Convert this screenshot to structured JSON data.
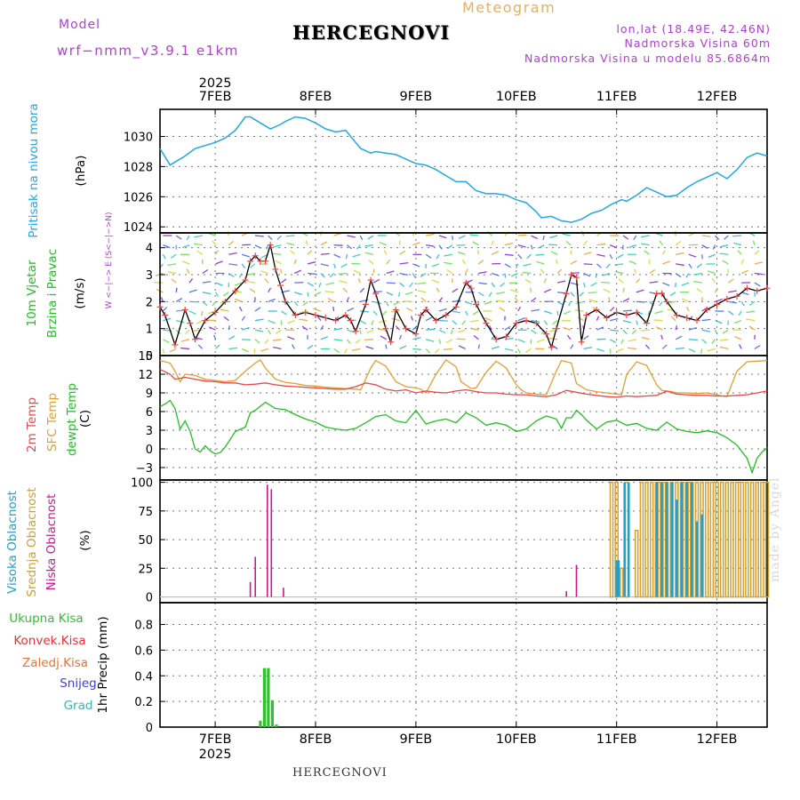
{
  "header": {
    "model_label": "Model",
    "model_version": "wrf−nmm_v3.9.1  e1km",
    "meteogram_label": "Meteogram",
    "station": "HERCEGNOVI",
    "coords": "lon,lat (18.49E, 42.46N)",
    "elevation": "Nadmorska Visina 60m",
    "model_elevation": "Nadmorska Visina u modelu 85.6864m"
  },
  "footer": {
    "station": "HERCEGNOVI",
    "credit": "made by Angel"
  },
  "colors": {
    "pressure": "#20a8e8",
    "wind_label": "#20c020",
    "t2m": "#e84848",
    "sfc_temp": "#e0a030",
    "dewpoint": "#20c020",
    "high_cloud": "#20a0d0",
    "mid_cloud": "#d0a030",
    "low_cloud": "#c81890",
    "total_precip": "#30c030",
    "conv_precip": "#e83030",
    "frozen": "#f07030",
    "snow": "#4040d0",
    "hail": "#20c0c0"
  },
  "chart_data": [
    {
      "type": "line",
      "title": "",
      "ylabel": [
        "Pritisak na nivou mora",
        "(hPa)"
      ],
      "ylim": [
        1023.6,
        1031.8
      ],
      "yticks": [
        "1024",
        "1026",
        "1028",
        "1030"
      ],
      "grid": true,
      "top_year": "2025",
      "x_dates": [
        "7FEB",
        "8FEB",
        "9FEB",
        "10FEB",
        "11FEB",
        "12FEB"
      ],
      "x_day_range": [
        6.45,
        12.5
      ],
      "series": [
        {
          "name": "Pritisak na nivou mora",
          "x": [
            6.45,
            6.55,
            6.6,
            6.7,
            6.8,
            6.9,
            7.0,
            7.1,
            7.2,
            7.3,
            7.35,
            7.45,
            7.55,
            7.65,
            7.7,
            7.8,
            7.9,
            8.0,
            8.1,
            8.2,
            8.3,
            8.4,
            8.45,
            8.55,
            8.6,
            8.7,
            8.8,
            8.9,
            9.0,
            9.1,
            9.2,
            9.3,
            9.4,
            9.5,
            9.6,
            9.7,
            9.8,
            9.9,
            10.0,
            10.1,
            10.2,
            10.25,
            10.35,
            10.45,
            10.55,
            10.65,
            10.75,
            10.85,
            10.95,
            11.05,
            11.1,
            11.2,
            11.3,
            11.4,
            11.5,
            11.6,
            11.7,
            11.8,
            11.9,
            12.0,
            12.1,
            12.2,
            12.3,
            12.4,
            12.5
          ],
          "y": [
            1029.2,
            1028.1,
            1028.3,
            1028.7,
            1029.2,
            1029.4,
            1029.6,
            1029.9,
            1030.4,
            1031.3,
            1031.3,
            1030.9,
            1030.5,
            1030.8,
            1031.0,
            1031.3,
            1031.2,
            1030.9,
            1030.5,
            1030.3,
            1030.4,
            1029.6,
            1029.2,
            1028.9,
            1029.0,
            1028.9,
            1028.8,
            1028.5,
            1028.2,
            1028.1,
            1027.8,
            1027.4,
            1027.0,
            1027.0,
            1026.4,
            1026.2,
            1026.2,
            1026.1,
            1025.8,
            1025.6,
            1025.0,
            1024.6,
            1024.7,
            1024.4,
            1024.3,
            1024.5,
            1024.9,
            1025.1,
            1025.5,
            1025.8,
            1025.7,
            1026.1,
            1026.6,
            1026.3,
            1026.0,
            1026.1,
            1026.6,
            1027.0,
            1027.3,
            1027.6,
            1027.2,
            1027.8,
            1028.6,
            1028.9,
            1028.7
          ]
        }
      ]
    },
    {
      "type": "line",
      "title": "",
      "ylabel": [
        "10m Vjetar",
        "Brzina i Pravac",
        "(m/s)"
      ],
      "compass": "W <−|−> E  (S<−|−>N)",
      "ylim": [
        0,
        4.55
      ],
      "yticks": [
        "0",
        "1",
        "2",
        "3",
        "4"
      ],
      "grid": true,
      "series": [
        {
          "name": "Brzina",
          "x": [
            6.45,
            6.5,
            6.6,
            6.7,
            6.75,
            6.8,
            6.9,
            7.0,
            7.1,
            7.2,
            7.3,
            7.35,
            7.4,
            7.45,
            7.5,
            7.55,
            7.6,
            7.65,
            7.7,
            7.8,
            7.9,
            8.0,
            8.1,
            8.2,
            8.3,
            8.35,
            8.4,
            8.5,
            8.55,
            8.6,
            8.7,
            8.75,
            8.8,
            8.9,
            9.0,
            9.05,
            9.1,
            9.2,
            9.3,
            9.4,
            9.5,
            9.55,
            9.6,
            9.7,
            9.8,
            9.9,
            10.0,
            10.1,
            10.2,
            10.3,
            10.35,
            10.4,
            10.5,
            10.55,
            10.6,
            10.65,
            10.7,
            10.8,
            10.9,
            11.0,
            11.1,
            11.2,
            11.3,
            11.4,
            11.45,
            11.5,
            11.6,
            11.7,
            11.8,
            11.9,
            12.0,
            12.1,
            12.2,
            12.3,
            12.4,
            12.5
          ],
          "y": [
            1.8,
            1.5,
            0.4,
            1.7,
            1.2,
            0.6,
            1.3,
            1.6,
            2.0,
            2.4,
            2.8,
            3.5,
            3.7,
            3.5,
            3.5,
            4.1,
            3.2,
            2.6,
            2.0,
            1.5,
            1.6,
            1.5,
            1.4,
            1.3,
            1.5,
            1.3,
            0.9,
            1.9,
            2.8,
            2.3,
            1.0,
            0.5,
            1.7,
            1.0,
            0.8,
            1.5,
            1.7,
            1.3,
            1.5,
            1.8,
            2.7,
            2.5,
            1.9,
            1.2,
            0.6,
            0.7,
            1.2,
            1.3,
            1.2,
            0.8,
            0.3,
            1.0,
            2.3,
            3.0,
            2.9,
            0.5,
            1.5,
            1.7,
            1.4,
            1.6,
            1.5,
            1.6,
            1.2,
            2.3,
            2.3,
            2.0,
            1.5,
            1.4,
            1.3,
            1.7,
            1.9,
            2.1,
            2.2,
            2.5,
            2.4,
            2.5
          ]
        }
      ]
    },
    {
      "type": "line",
      "title": "",
      "ylabel": [
        "2m Temp",
        "SFC Temp",
        "dewpt Temp",
        "(C)"
      ],
      "ylim": [
        -5,
        15
      ],
      "yticks": [
        "−3",
        "0",
        "3",
        "6",
        "9",
        "12",
        "15"
      ],
      "grid": true,
      "series": [
        {
          "name": "2m Temp",
          "x": [
            6.45,
            6.55,
            6.6,
            6.7,
            6.8,
            6.9,
            7.0,
            7.1,
            7.2,
            7.3,
            7.4,
            7.5,
            7.6,
            7.7,
            7.8,
            7.9,
            8.0,
            8.1,
            8.2,
            8.3,
            8.4,
            8.5,
            8.6,
            8.7,
            8.8,
            8.9,
            9.0,
            9.1,
            9.2,
            9.3,
            9.4,
            9.5,
            9.6,
            9.7,
            9.8,
            9.9,
            10.0,
            10.1,
            10.2,
            10.3,
            10.4,
            10.5,
            10.6,
            10.7,
            10.8,
            10.9,
            11.0,
            11.1,
            11.2,
            11.3,
            11.4,
            11.5,
            11.6,
            11.7,
            11.8,
            11.9,
            12.0,
            12.1,
            12.2,
            12.3,
            12.4,
            12.5
          ],
          "y": [
            12.8,
            12.0,
            11.2,
            11.5,
            11.2,
            10.9,
            10.8,
            10.6,
            10.6,
            10.3,
            10.4,
            10.6,
            10.3,
            10.1,
            10.0,
            9.9,
            9.8,
            9.7,
            9.6,
            9.6,
            10.0,
            10.6,
            10.3,
            9.6,
            9.3,
            9.5,
            9.0,
            9.3,
            9.1,
            9.0,
            9.3,
            9.5,
            9.2,
            9.0,
            9.0,
            8.8,
            8.7,
            8.7,
            8.5,
            8.4,
            8.7,
            9.4,
            9.1,
            8.8,
            8.6,
            8.4,
            8.3,
            8.5,
            8.4,
            8.5,
            8.6,
            9.3,
            8.8,
            8.7,
            8.6,
            8.6,
            8.5,
            8.5,
            8.6,
            8.7,
            9.0,
            9.3
          ]
        },
        {
          "name": "SFC Temp",
          "x": [
            6.45,
            6.55,
            6.6,
            6.65,
            6.7,
            6.8,
            6.9,
            7.0,
            7.1,
            7.2,
            7.3,
            7.4,
            7.45,
            7.5,
            7.6,
            7.7,
            7.8,
            7.9,
            8.0,
            8.1,
            8.2,
            8.3,
            8.4,
            8.45,
            8.55,
            8.6,
            8.7,
            8.8,
            8.9,
            9.0,
            9.05,
            9.1,
            9.2,
            9.3,
            9.4,
            9.45,
            9.55,
            9.6,
            9.7,
            9.8,
            9.9,
            10.0,
            10.05,
            10.1,
            10.2,
            10.3,
            10.4,
            10.45,
            10.55,
            10.6,
            10.7,
            10.8,
            10.9,
            11.0,
            11.05,
            11.1,
            11.2,
            11.3,
            11.4,
            11.45,
            11.55,
            11.6,
            11.7,
            11.8,
            11.9,
            12.0,
            12.05,
            12.1,
            12.2,
            12.3,
            12.4,
            12.5
          ],
          "y": [
            14.2,
            13.8,
            12.5,
            10.8,
            12.0,
            11.8,
            11.2,
            11.0,
            10.8,
            11.0,
            12.5,
            13.8,
            14.3,
            13.0,
            11.2,
            10.7,
            10.5,
            10.2,
            10.1,
            9.9,
            9.8,
            9.7,
            9.6,
            9.5,
            13.0,
            14.2,
            13.3,
            10.8,
            10.0,
            9.8,
            9.6,
            9.0,
            12.0,
            14.3,
            13.2,
            10.8,
            9.7,
            9.8,
            12.3,
            14.1,
            13.0,
            10.3,
            9.5,
            9.0,
            8.8,
            8.7,
            12.5,
            14.2,
            13.8,
            10.5,
            9.5,
            9.2,
            9.0,
            8.8,
            8.7,
            12.0,
            14.0,
            13.4,
            10.3,
            9.4,
            9.2,
            9.0,
            9.0,
            8.9,
            9.0,
            8.7,
            8.5,
            8.4,
            12.5,
            14.0,
            14.1,
            14.2
          ]
        },
        {
          "name": "dewpt Temp",
          "x": [
            6.45,
            6.5,
            6.55,
            6.6,
            6.65,
            6.7,
            6.75,
            6.8,
            6.85,
            6.9,
            6.95,
            7.0,
            7.05,
            7.1,
            7.2,
            7.3,
            7.35,
            7.4,
            7.5,
            7.6,
            7.7,
            7.8,
            7.9,
            8.0,
            8.1,
            8.2,
            8.3,
            8.4,
            8.5,
            8.6,
            8.7,
            8.8,
            8.9,
            9.0,
            9.1,
            9.2,
            9.3,
            9.4,
            9.5,
            9.6,
            9.7,
            9.8,
            9.9,
            10.0,
            10.1,
            10.2,
            10.3,
            10.4,
            10.45,
            10.5,
            10.55,
            10.6,
            10.65,
            10.7,
            10.8,
            10.9,
            11.0,
            11.1,
            11.2,
            11.3,
            11.4,
            11.5,
            11.6,
            11.7,
            11.8,
            11.9,
            12.0,
            12.1,
            12.2,
            12.3,
            12.35,
            12.4,
            12.45,
            12.5
          ],
          "y": [
            6.8,
            7.2,
            7.8,
            6.5,
            3.2,
            4.5,
            2.8,
            0.0,
            -0.5,
            0.5,
            -0.3,
            -0.8,
            -0.6,
            0.3,
            2.8,
            3.5,
            5.8,
            6.2,
            7.5,
            6.5,
            6.3,
            5.5,
            4.8,
            4.3,
            3.5,
            3.2,
            3.0,
            3.3,
            4.2,
            5.2,
            5.5,
            4.5,
            4.2,
            6.2,
            4.0,
            4.5,
            4.8,
            4.2,
            5.8,
            5.0,
            3.8,
            4.2,
            3.8,
            2.8,
            3.2,
            4.5,
            5.3,
            4.8,
            3.3,
            5.0,
            5.0,
            6.2,
            5.5,
            4.6,
            3.2,
            4.3,
            4.6,
            3.8,
            4.1,
            3.3,
            3.0,
            4.3,
            3.2,
            2.8,
            2.6,
            2.9,
            2.6,
            1.8,
            0.6,
            -1.5,
            -3.8,
            -1.5,
            -0.5,
            0.2
          ]
        }
      ]
    },
    {
      "type": "bar",
      "title": "",
      "ylabel": [
        "Visoka Oblacnost",
        "Srednja Oblacnost",
        "Niska Oblacnost",
        "(%)"
      ],
      "ylim": [
        -5,
        102
      ],
      "yticks": [
        "0",
        "25",
        "50",
        "75",
        "100"
      ],
      "grid": true,
      "series": [
        {
          "name": "Niska Oblacnost",
          "x": [
            7.35,
            7.4,
            7.52,
            7.56,
            7.68,
            10.5,
            10.6
          ],
          "values": [
            13,
            35,
            98,
            94,
            8,
            5,
            28
          ]
        },
        {
          "name": "Srednja Oblacnost",
          "x": [
            10.95,
            11.0,
            11.05,
            11.1,
            11.2,
            11.25,
            11.3,
            11.35,
            11.4,
            11.45,
            11.5,
            11.55,
            11.6,
            11.65,
            11.7,
            11.75,
            11.8,
            11.85,
            11.9,
            11.95,
            12.0,
            12.05,
            12.1,
            12.15,
            12.2,
            12.25,
            12.3,
            12.35,
            12.4,
            12.45,
            12.5
          ],
          "values": [
            100,
            100,
            25,
            100,
            58,
            100,
            100,
            100,
            100,
            100,
            100,
            100,
            100,
            100,
            100,
            100,
            100,
            100,
            100,
            100,
            100,
            100,
            100,
            100,
            100,
            100,
            100,
            100,
            100,
            100,
            100
          ]
        },
        {
          "name": "Visoka Oblacnost",
          "x": [
            11.0,
            11.02,
            11.08,
            11.12,
            11.4,
            11.45,
            11.5,
            11.55,
            11.6,
            11.65,
            11.7,
            11.75,
            11.8,
            11.85
          ],
          "values": [
            32,
            32,
            100,
            100,
            100,
            100,
            100,
            100,
            85,
            100,
            100,
            100,
            66,
            72
          ]
        }
      ]
    },
    {
      "type": "bar",
      "title": "",
      "ylabel": [
        "Ukupna Kisa",
        "Konvek.Kisa",
        "Zaledj.Kisa",
        "Snijeg",
        "Grad",
        "1hr Precip (mm)"
      ],
      "ylim": [
        0,
        0.97
      ],
      "yticks": [
        "0",
        "0.2",
        "0.4",
        "0.6",
        "0.8"
      ],
      "grid": true,
      "bottom_year": "2025",
      "series": [
        {
          "name": "Ukupna Kisa",
          "x": [
            7.45,
            7.49,
            7.53,
            7.57,
            7.61
          ],
          "values": [
            0.05,
            0.46,
            0.46,
            0.21,
            0.02
          ]
        }
      ]
    }
  ]
}
